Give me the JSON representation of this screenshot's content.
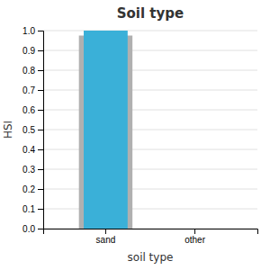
{
  "chart_data": {
    "type": "bar",
    "title": "Soil type",
    "xlabel": "soil type",
    "ylabel": "HSI",
    "categories": [
      "sand",
      "other"
    ],
    "series": [
      {
        "color": "#b0b0b0",
        "values": [
          0.975,
          0.0
        ]
      },
      {
        "color": "#3ab0d8",
        "values": [
          1.0,
          0.0
        ]
      }
    ],
    "ylim": [
      0.0,
      1.0
    ],
    "yticks": [
      {
        "value": 0.0,
        "label": "0.0"
      },
      0.1,
      0.2,
      0.3,
      0.4,
      0.5,
      0.6,
      0.7,
      0.8,
      0.9,
      {
        "value": 1.0,
        "label": "1.0"
      }
    ],
    "grid": true
  }
}
